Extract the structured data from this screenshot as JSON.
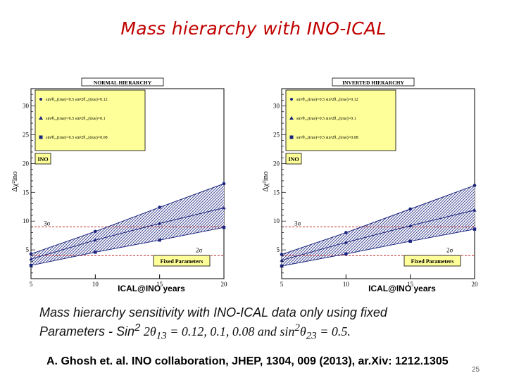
{
  "slide": {
    "title": "Mass hierarchy with INO-ICAL",
    "caption_line1": "Mass hierarchy sensitivity with INO-ICAL data only using  fixed",
    "caption_line2_a": "Parameters - Sin",
    "caption_line2_sup": "2",
    "caption_line2_b": " 2θ",
    "caption_line2_sub1": "13",
    "caption_line2_c": " = 0.12, 0.1, 0.08",
    "caption_line2_d": "  and sin",
    "caption_line2_sup2": "2",
    "caption_line2_e": "θ",
    "caption_line2_sub2": "23",
    "caption_line2_f": " = 0.5.",
    "reference": "A. Ghosh et. al. INO collaboration, JHEP, 1304, 009 (2013), ar.Xiv: 1212.1305",
    "page_number": "25"
  },
  "chart_data": [
    {
      "type": "line",
      "title": "NORMAL HIERARCHY",
      "xlabel": "ICAL@INO years",
      "ylabel": "Δχ²ino",
      "xlim": [
        5,
        20
      ],
      "ylim": [
        0,
        33
      ],
      "xticks": [
        5,
        10,
        15,
        20
      ],
      "yticks": [
        5,
        10,
        15,
        20,
        25,
        30
      ],
      "grid": false,
      "legend_position": "top-left",
      "legend_label": "INO",
      "annotation": "Fixed Parameters",
      "series": [
        {
          "name": "sin²θ₂₃(true)=0.5   sin²2θ₁₃(true)=0.12",
          "marker": "circle",
          "x": [
            5,
            10,
            15,
            20
          ],
          "y": [
            4.3,
            8.2,
            12.4,
            16.5
          ]
        },
        {
          "name": "sin²θ₂₃(true)=0.5   sin²2θ₁₃(true)=0.1",
          "marker": "triangle",
          "x": [
            5,
            10,
            15,
            20
          ],
          "y": [
            3.4,
            6.7,
            9.6,
            12.3
          ]
        },
        {
          "name": "sin²θ₂₃(true)=0.5   sin²2θ₁₃(true)=0.08",
          "marker": "square",
          "x": [
            5,
            10,
            15,
            20
          ],
          "y": [
            2.3,
            4.6,
            6.7,
            8.9
          ]
        }
      ],
      "reference_lines": [
        {
          "label": "3σ",
          "y": 9
        },
        {
          "label": "2σ",
          "y": 4
        }
      ]
    },
    {
      "type": "line",
      "title": "INVERTED HIERARCHY",
      "xlabel": "ICAL@INO years",
      "ylabel": "Δχ²ino",
      "xlim": [
        5,
        20
      ],
      "ylim": [
        0,
        33
      ],
      "xticks": [
        5,
        10,
        15,
        20
      ],
      "yticks": [
        5,
        10,
        15,
        20,
        25,
        30
      ],
      "grid": false,
      "legend_position": "top-left",
      "legend_label": "INO",
      "annotation": "Fixed Parameters",
      "series": [
        {
          "name": "sin²θ₂₃(true)=0.5   sin²2θ₁₃(true)=0.12",
          "marker": "circle",
          "x": [
            5,
            10,
            15,
            20
          ],
          "y": [
            4.2,
            8.0,
            12.1,
            16.2
          ]
        },
        {
          "name": "sin²θ₂₃(true)=0.5   sin²2θ₁₃(true)=0.1",
          "marker": "triangle",
          "x": [
            5,
            10,
            15,
            20
          ],
          "y": [
            3.2,
            6.3,
            9.2,
            11.9
          ]
        },
        {
          "name": "sin²θ₂₃(true)=0.5   sin²2θ₁₃(true)=0.08",
          "marker": "square",
          "x": [
            5,
            10,
            15,
            20
          ],
          "y": [
            2.2,
            4.3,
            6.5,
            8.6
          ]
        }
      ],
      "reference_lines": [
        {
          "label": "3σ",
          "y": 9
        },
        {
          "label": "2σ",
          "y": 4
        }
      ]
    }
  ]
}
